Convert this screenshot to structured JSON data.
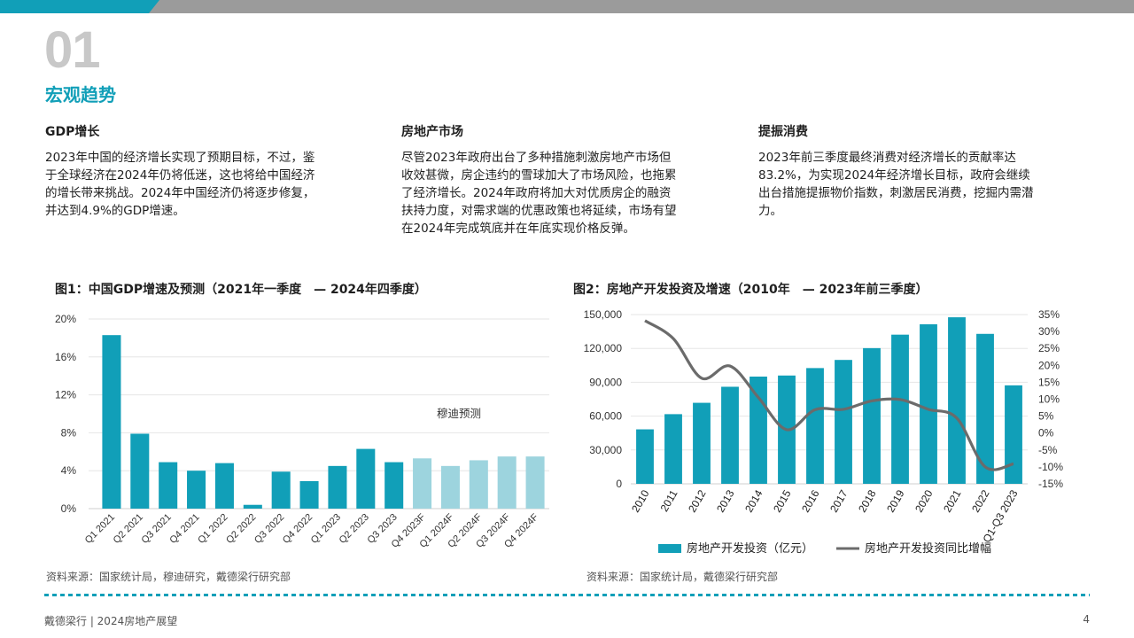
{
  "header": {
    "section_number": "01",
    "section_title": "宏观趋势"
  },
  "columns": [
    {
      "heading": "GDP增长",
      "lines": [
        "2023年中国的经济增长实现了预期目标，不过，鉴",
        "于全球经济在2024年仍将低迷，这也将给中国经济",
        "的增长带来挑战。2024年中国经济仍将逐步修复，",
        "并达到4.9%的GDP增速。"
      ]
    },
    {
      "heading": "房地产市场",
      "lines": [
        "尽管2023年政府出台了多种措施刺激房地产市场但",
        "收效甚微，房企违约的雪球加大了市场风险，也拖累",
        "了经济增长。2024年政府将加大对优质房企的融资",
        "扶持力度，对需求端的优惠政策也将延续，市场有望",
        "在2024年完成筑底并在年底实现价格反弹。"
      ]
    },
    {
      "heading": "提振消费",
      "lines": [
        "2023年前三季度最终消费对经济增长的贡献率达",
        "83.2%，为实现2024年经济增长目标，政府会继续",
        "出台措施提振物价指数，刺激居民消费，挖掘内需潜",
        "力。"
      ]
    }
  ],
  "charts": {
    "fig1": {
      "title": "图1：中国GDP增速及预测（2021年一季度　— 2024年四季度）",
      "source": "资料来源：国家统计局，穆迪研究，戴德梁行研究部"
    },
    "fig2": {
      "title": "图2：房地产开发投资及增速（2010年　— 2023年前三季度）",
      "source": "资料来源：国家统计局，戴德梁行研究部"
    }
  },
  "footer": {
    "left": "戴德梁行 | 2024房地产展望",
    "page": "4"
  },
  "colors": {
    "accent": "#119fb8",
    "forecast": "#9dd4de",
    "line": "#6b6b6b",
    "grey": "#c8c8c8"
  },
  "chart_data": [
    {
      "type": "bar",
      "title": "图1：中国GDP增速及预测（2021年一季度　— 2024年四季度）",
      "categories": [
        "Q1 2021",
        "Q2 2021",
        "Q3 2021",
        "Q4 2021",
        "Q1 2022",
        "Q2 2022",
        "Q3 2022",
        "Q4 2022",
        "Q1 2023",
        "Q2 2023",
        "Q3 2023",
        "Q4 2023F",
        "Q1 2024F",
        "Q2 2024F",
        "Q3 2024F",
        "Q4 2024F"
      ],
      "values": [
        18.3,
        7.9,
        4.9,
        4.0,
        4.8,
        0.4,
        3.9,
        2.9,
        4.5,
        6.3,
        4.9,
        5.3,
        4.5,
        5.1,
        5.5,
        5.5
      ],
      "forecast_from_index": 11,
      "annotation": "穆迪预测",
      "yticks": [
        "0%",
        "4%",
        "8%",
        "12%",
        "16%",
        "20%"
      ],
      "ylim": [
        0,
        20
      ],
      "grid": true
    },
    {
      "type": "bar+line",
      "title": "图2：房地产开发投资及增速（2010年　— 2023年前三季度）",
      "categories": [
        "2010",
        "2011",
        "2012",
        "2013",
        "2014",
        "2015",
        "2016",
        "2017",
        "2018",
        "2019",
        "2020",
        "2021",
        "2022",
        "Q1-Q3 2023"
      ],
      "series": [
        {
          "name": "房地产开发投资（亿元）",
          "type": "bar",
          "axis": "left",
          "values": [
            48267,
            61740,
            71804,
            86013,
            95036,
            95979,
            102581,
            109799,
            120264,
            132194,
            141443,
            147602,
            132895,
            87269
          ]
        },
        {
          "name": "房地产开发投资同比增幅",
          "type": "line",
          "axis": "right",
          "values": [
            33.2,
            27.9,
            16.2,
            19.8,
            10.5,
            1.0,
            6.9,
            7.0,
            9.5,
            9.9,
            7.0,
            4.4,
            -10.0,
            -9.1
          ]
        }
      ],
      "yticks_left": [
        "0",
        "30,000",
        "60,000",
        "90,000",
        "120,000",
        "150,000"
      ],
      "ylim_left": [
        0,
        150000
      ],
      "yticks_right": [
        "-15%",
        "-10%",
        "-5%",
        "0%",
        "5%",
        "10%",
        "15%",
        "20%",
        "25%",
        "30%",
        "35%"
      ],
      "ylim_right": [
        -15,
        35
      ],
      "grid": true,
      "legend": "bottom"
    }
  ]
}
